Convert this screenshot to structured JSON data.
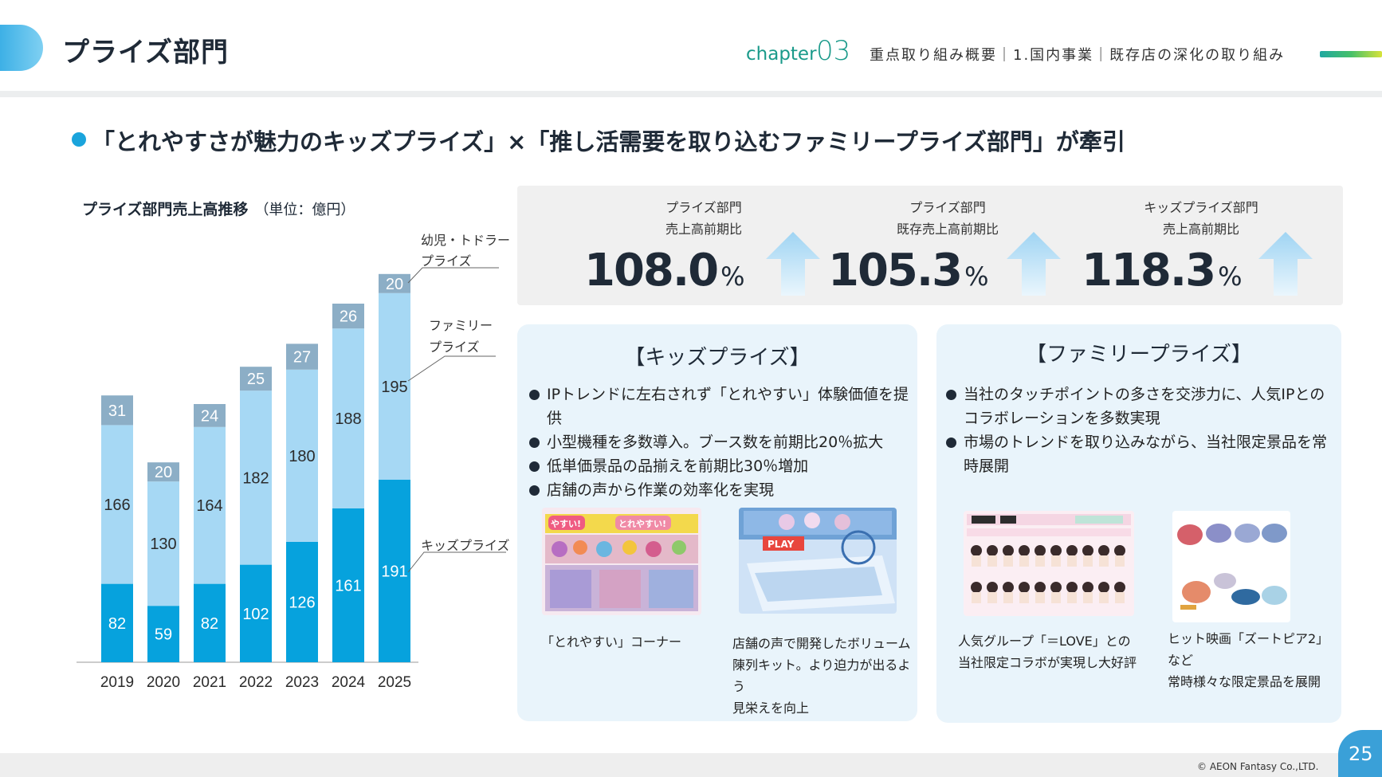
{
  "header": {
    "title": "プライズ部門",
    "chapter_word": "chapter",
    "chapter_num": "03",
    "breadcrumb": "重点取り組み概要｜1.国内事業｜既存店の深化の取り組み"
  },
  "headline": "「とれやすさが魅力のキッズプライズ」×「推し活需要を取り込むファミリープライズ部門」が牽引",
  "chart": {
    "title": "プライズ部門売上高推移",
    "unit": "（単位：億円）"
  },
  "chart_data": {
    "type": "bar",
    "stacked": true,
    "title": "プライズ部門売上高推移",
    "unit": "（単位：億円）",
    "categories": [
      "2019",
      "2020",
      "2021",
      "2022",
      "2023",
      "2024",
      "2025"
    ],
    "series": [
      {
        "name": "キッズプライズ",
        "values": [
          82,
          59,
          82,
          102,
          126,
          161,
          191
        ],
        "color": "#06a2dd"
      },
      {
        "name": "ファミリープライズ",
        "values": [
          166,
          130,
          164,
          182,
          180,
          188,
          195
        ],
        "color": "#a6d8f4"
      },
      {
        "name": "幼児・トドラープライズ",
        "values": [
          31,
          20,
          24,
          25,
          27,
          26,
          20
        ],
        "color": "#8caec6"
      }
    ],
    "legend_labels": {
      "toddler_line1": "幼児・トドラー",
      "toddler_line2": "プライズ",
      "family_line1": "ファミリー",
      "family_line2": "プライズ",
      "kids": "キッズプライズ"
    },
    "grid": false,
    "legend_placement": "right"
  },
  "kpis": [
    {
      "label_line1": "プライズ部門",
      "label_line2": "売上高前期比",
      "value": "108.0",
      "unit": "%"
    },
    {
      "label_line1": "プライズ部門",
      "label_line2": "既存売上高前期比",
      "value": "105.3",
      "unit": "%"
    },
    {
      "label_line1": "キッズプライズ部門",
      "label_line2": "売上高前期比",
      "value": "118.3",
      "unit": "%"
    }
  ],
  "kids_card": {
    "title": "【キッズプライズ】",
    "bullets": [
      "IPトレンドに左右されず「とれやすい」体験価値を提供",
      "小型機種を多数導入。ブース数を前期比20％拡大",
      "低単価景品の品揃えを前期比30％増加",
      "店舗の声から作業の効率化を実現"
    ],
    "caption1": "「とれやすい」コーナー",
    "caption2_lines": [
      "店舗の声で開発したボリューム",
      "陳列キット。より迫力が出るよう",
      "見栄えを向上"
    ],
    "photo1_sign_texts": [
      "やすい!",
      "とれやすい!"
    ],
    "photo2_sign_text": "PLAY"
  },
  "family_card": {
    "title": "【ファミリープライズ】",
    "bullets": [
      "当社のタッチポイントの多さを交渉力に、人気IPとのコラボレーションを多数実現",
      "市場のトレンドを取り込みながら、当社限定景品を常時展開"
    ],
    "caption1_lines": [
      "人気グループ「＝LOVE」との",
      "当社限定コラボが実現し大好評"
    ],
    "caption2_lines": [
      "ヒット映画「ズートピア2」など",
      "常時様々な限定景品を展開"
    ]
  },
  "footer": {
    "copyright": "© AEON Fantasy Co.,LTD.",
    "page": "25"
  }
}
